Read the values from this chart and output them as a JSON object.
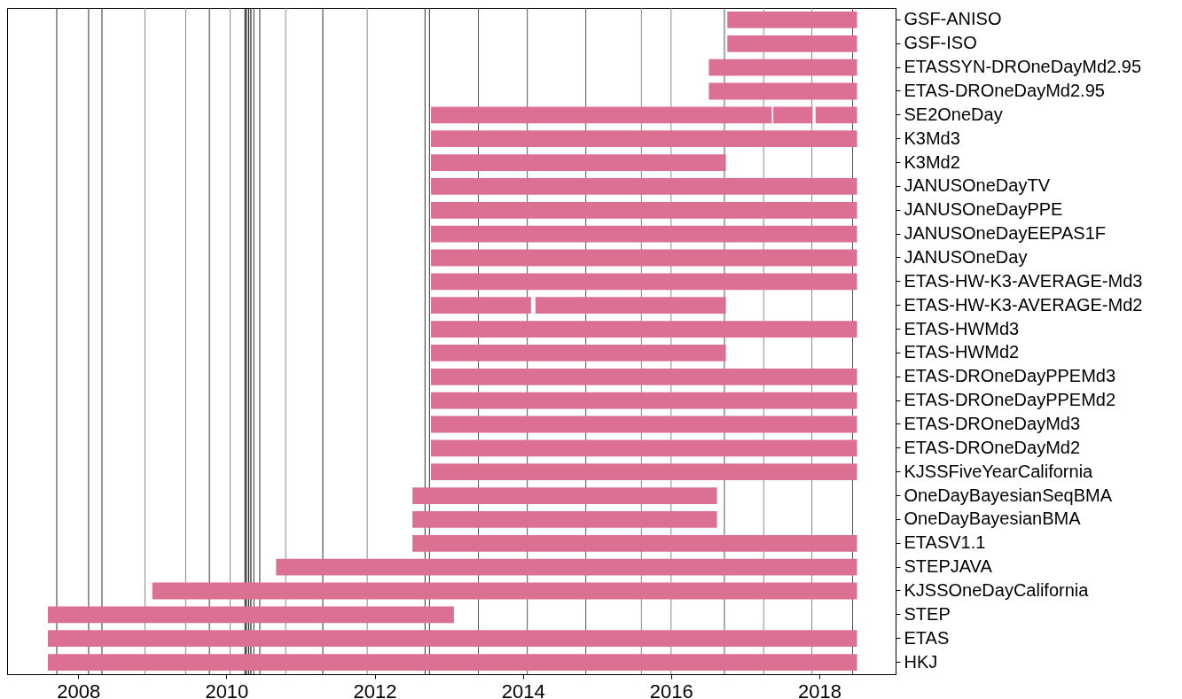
{
  "chart_data": {
    "type": "bar",
    "orientation": "horizontal",
    "grid": false,
    "categories": [
      "GSF-ANISO",
      "GSF-ISO",
      "ETASSYN-DROneDayMd2.95",
      "ETAS-DROneDayMd2.95",
      "SE2OneDay",
      "K3Md3",
      "K3Md2",
      "JANUSOneDayTV",
      "JANUSOneDayPPE",
      "JANUSOneDayEEPAS1F",
      "JANUSOneDay",
      "ETAS-HW-K3-AVERAGE-Md3",
      "ETAS-HW-K3-AVERAGE-Md2",
      "ETAS-HWMd3",
      "ETAS-HWMd2",
      "ETAS-DROneDayPPEMd3",
      "ETAS-DROneDayPPEMd2",
      "ETAS-DROneDayMd3",
      "ETAS-DROneDayMd2",
      "KJSSFiveYearCalifornia",
      "OneDayBayesianSeqBMA",
      "OneDayBayesianBMA",
      "ETASV1.1",
      "STEPJAVA",
      "KJSSOneDayCalifornia",
      "STEP",
      "ETAS",
      "HKJ"
    ],
    "series": [
      {
        "color": "#db7093",
        "base": [
          2016.76,
          2016.76,
          2016.51,
          2016.51,
          2012.76,
          2012.76,
          2012.76,
          2012.76,
          2012.76,
          2012.76,
          2012.76,
          2012.76,
          2012.76,
          2012.76,
          2012.76,
          2012.76,
          2012.76,
          2012.76,
          2012.76,
          2012.76,
          2012.51,
          2012.51,
          2012.51,
          2010.67,
          2009.0,
          2007.59,
          2007.59,
          2007.59
        ],
        "values": [
          1.75,
          1.75,
          2.0,
          2.0,
          4.6,
          5.75,
          3.98,
          5.75,
          5.75,
          5.75,
          5.75,
          5.75,
          1.35,
          5.75,
          3.98,
          5.75,
          5.75,
          5.75,
          5.75,
          5.75,
          4.11,
          4.11,
          6.0,
          7.84,
          9.51,
          5.48,
          10.92,
          10.92
        ]
      },
      {
        "color": "#db7093",
        "base": [
          null,
          null,
          null,
          null,
          2017.38,
          null,
          null,
          null,
          null,
          null,
          null,
          null,
          2014.17,
          null,
          null,
          null,
          null,
          null,
          null,
          null,
          null,
          null,
          null,
          null,
          null,
          null,
          null,
          null
        ],
        "values": [
          null,
          null,
          null,
          null,
          0.53,
          null,
          null,
          null,
          null,
          null,
          null,
          null,
          2.57,
          null,
          null,
          null,
          null,
          null,
          null,
          null,
          null,
          null,
          null,
          null,
          null,
          null,
          null,
          null
        ]
      },
      {
        "color": "#db7093",
        "base": [
          null,
          null,
          null,
          null,
          2017.95,
          null,
          null,
          null,
          null,
          null,
          null,
          null,
          null,
          null,
          null,
          null,
          null,
          null,
          null,
          null,
          null,
          null,
          null,
          null,
          null,
          null,
          null,
          null
        ],
        "values": [
          null,
          null,
          null,
          null,
          0.56,
          null,
          null,
          null,
          null,
          null,
          null,
          null,
          null,
          null,
          null,
          null,
          null,
          null,
          null,
          null,
          null,
          null,
          null,
          null,
          null,
          null,
          null,
          null
        ]
      }
    ],
    "xlim": [
      2007.04,
      2019.03
    ],
    "xticks": [
      2008,
      2010,
      2012,
      2014,
      2016,
      2018
    ],
    "ref_lines": [
      {
        "axis": "x",
        "value": 2007.71,
        "color": "#333333"
      },
      {
        "axis": "x",
        "value": 2008.14,
        "color": "#333333"
      },
      {
        "axis": "x",
        "value": 2008.32,
        "color": "#333333"
      },
      {
        "axis": "x",
        "value": 2008.9,
        "color": "#888888"
      },
      {
        "axis": "x",
        "value": 2009.45,
        "color": "#888888"
      },
      {
        "axis": "x",
        "value": 2009.77,
        "color": "#333333"
      },
      {
        "axis": "x",
        "value": 2010.05,
        "color": "#888888"
      },
      {
        "axis": "x",
        "value": 2010.25,
        "color": "#000000"
      },
      {
        "axis": "x",
        "value": 2010.27,
        "color": "#000000"
      },
      {
        "axis": "x",
        "value": 2010.3,
        "color": "#000000"
      },
      {
        "axis": "x",
        "value": 2010.33,
        "color": "#000000"
      },
      {
        "axis": "x",
        "value": 2010.37,
        "color": "#333333"
      },
      {
        "axis": "x",
        "value": 2010.45,
        "color": "#333333"
      },
      {
        "axis": "x",
        "value": 2010.8,
        "color": "#888888"
      },
      {
        "axis": "x",
        "value": 2011.3,
        "color": "#333333"
      },
      {
        "axis": "x",
        "value": 2011.9,
        "color": "#888888"
      },
      {
        "axis": "x",
        "value": 2012.68,
        "color": "#333333"
      },
      {
        "axis": "x",
        "value": 2012.74,
        "color": "#333333"
      },
      {
        "axis": "x",
        "value": 2013.4,
        "color": "#555555"
      },
      {
        "axis": "x",
        "value": 2014.06,
        "color": "#555555"
      },
      {
        "axis": "x",
        "value": 2014.85,
        "color": "#555555"
      },
      {
        "axis": "x",
        "value": 2015.6,
        "color": "#888888"
      },
      {
        "axis": "x",
        "value": 2016.0,
        "color": "#888888"
      },
      {
        "axis": "x",
        "value": 2016.72,
        "color": "#555555"
      },
      {
        "axis": "x",
        "value": 2017.25,
        "color": "#888888"
      },
      {
        "axis": "x",
        "value": 2017.9,
        "color": "#888888"
      },
      {
        "axis": "x",
        "value": 2018.45,
        "color": "#555555"
      }
    ]
  }
}
